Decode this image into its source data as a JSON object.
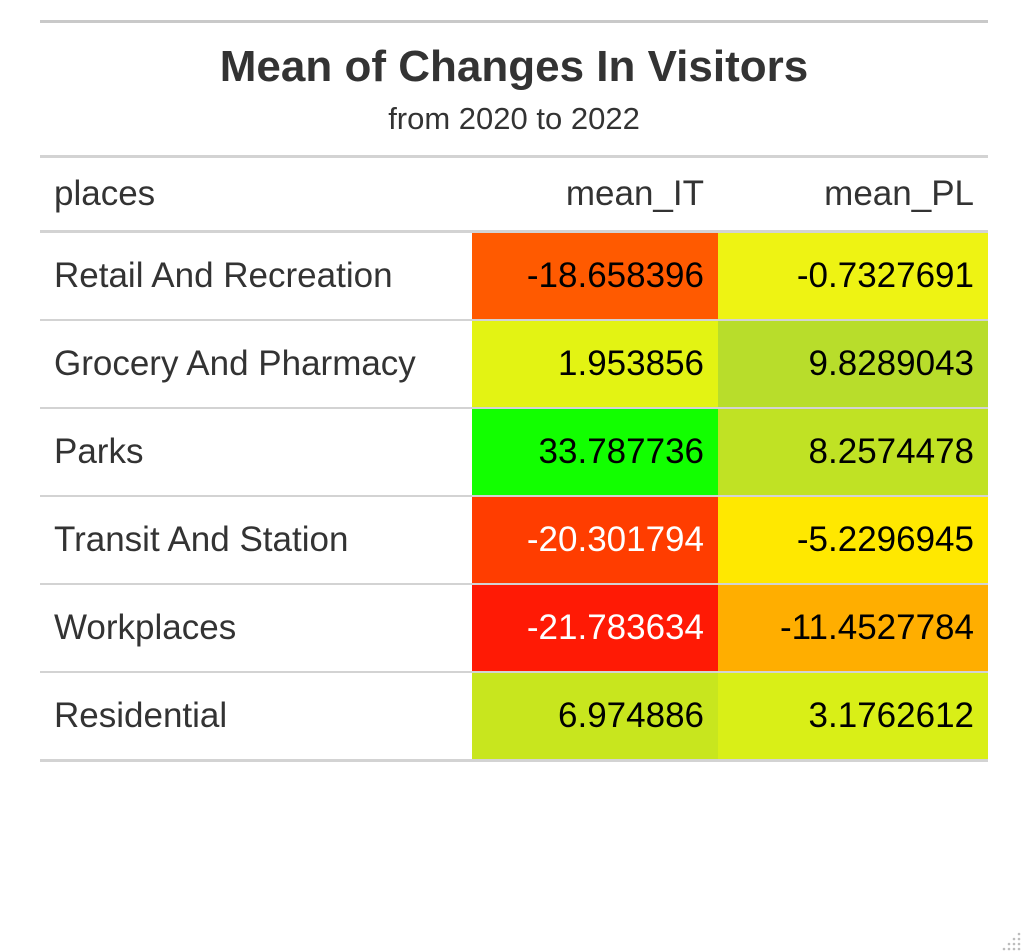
{
  "chart_data": {
    "type": "table",
    "title": "Mean of Changes In Visitors",
    "subtitle": "from 2020 to 2022",
    "columns": [
      "places",
      "mean_IT",
      "mean_PL"
    ],
    "rows": [
      {
        "places": "Retail And Recreation",
        "mean_IT": "-18.658396",
        "mean_PL": "-0.7327691",
        "color_IT": "#ff5a00",
        "color_PL": "#eef313",
        "text_IT": "#000000",
        "text_PL": "#000000"
      },
      {
        "places": "Grocery And Pharmacy",
        "mean_IT": "1.953856",
        "mean_PL": "9.8289043",
        "color_IT": "#e3f313",
        "color_PL": "#b8dd2b",
        "text_IT": "#000000",
        "text_PL": "#000000"
      },
      {
        "places": "Parks",
        "mean_IT": "33.787736",
        "mean_PL": "8.2574478",
        "color_IT": "#12ff00",
        "color_PL": "#c0e224",
        "text_IT": "#000000",
        "text_PL": "#000000"
      },
      {
        "places": "Transit And Station",
        "mean_IT": "-20.301794",
        "mean_PL": "-5.2296945",
        "color_IT": "#ff3d00",
        "color_PL": "#ffe800",
        "text_IT": "#ffffff",
        "text_PL": "#000000"
      },
      {
        "places": "Workplaces",
        "mean_IT": "-21.783634",
        "mean_PL": "-11.4527784",
        "color_IT": "#ff1a05",
        "color_PL": "#ffae00",
        "text_IT": "#ffffff",
        "text_PL": "#000000"
      },
      {
        "places": "Residential",
        "mean_IT": "6.974886",
        "mean_PL": "3.1762612",
        "color_IT": "#c8e61e",
        "color_PL": "#d9ef17",
        "text_IT": "#000000",
        "text_PL": "#000000"
      }
    ]
  }
}
